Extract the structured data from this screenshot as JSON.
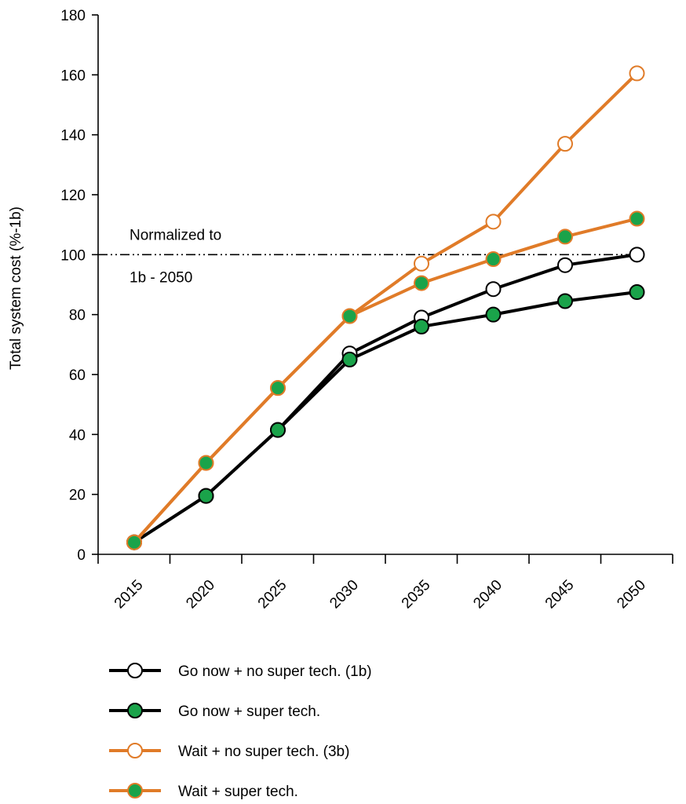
{
  "chart_data": {
    "type": "line",
    "ylabel": "Total system cost (%-1b)",
    "xlabel": "",
    "title": "",
    "x_tick_labels": [
      "2015",
      "2020",
      "2025",
      "2030",
      "2035",
      "2040",
      "2045",
      "2050"
    ],
    "ylim": [
      0,
      180
    ],
    "y_ticks": [
      0,
      20,
      40,
      60,
      80,
      100,
      120,
      140,
      160,
      180
    ],
    "grid": false,
    "legend_position": "bottom",
    "annotation": {
      "line1": "Normalized to",
      "line2": "1b - 2050",
      "y": 100
    },
    "series": [
      {
        "name": "Go now + no super tech. (1b)",
        "line_color": "#000000",
        "marker_fill": "#ffffff",
        "values": [
          4,
          19.5,
          41.5,
          67,
          79,
          88.5,
          96.5,
          100
        ]
      },
      {
        "name": "Go now + super tech.",
        "line_color": "#000000",
        "marker_fill": "#1aa34a",
        "values": [
          4,
          19.5,
          41.5,
          65,
          76,
          80,
          84.5,
          87.5
        ]
      },
      {
        "name": "Wait + no super tech. (3b)",
        "line_color": "#e07b28",
        "marker_fill": "#ffffff",
        "values": [
          4,
          30.5,
          55.5,
          79.5,
          97,
          111,
          137,
          160.5
        ]
      },
      {
        "name": "Wait + super tech.",
        "line_color": "#e07b28",
        "marker_fill": "#1aa34a",
        "values": [
          4,
          30.5,
          55.5,
          79.5,
          90.5,
          98.5,
          106,
          112
        ]
      }
    ]
  }
}
